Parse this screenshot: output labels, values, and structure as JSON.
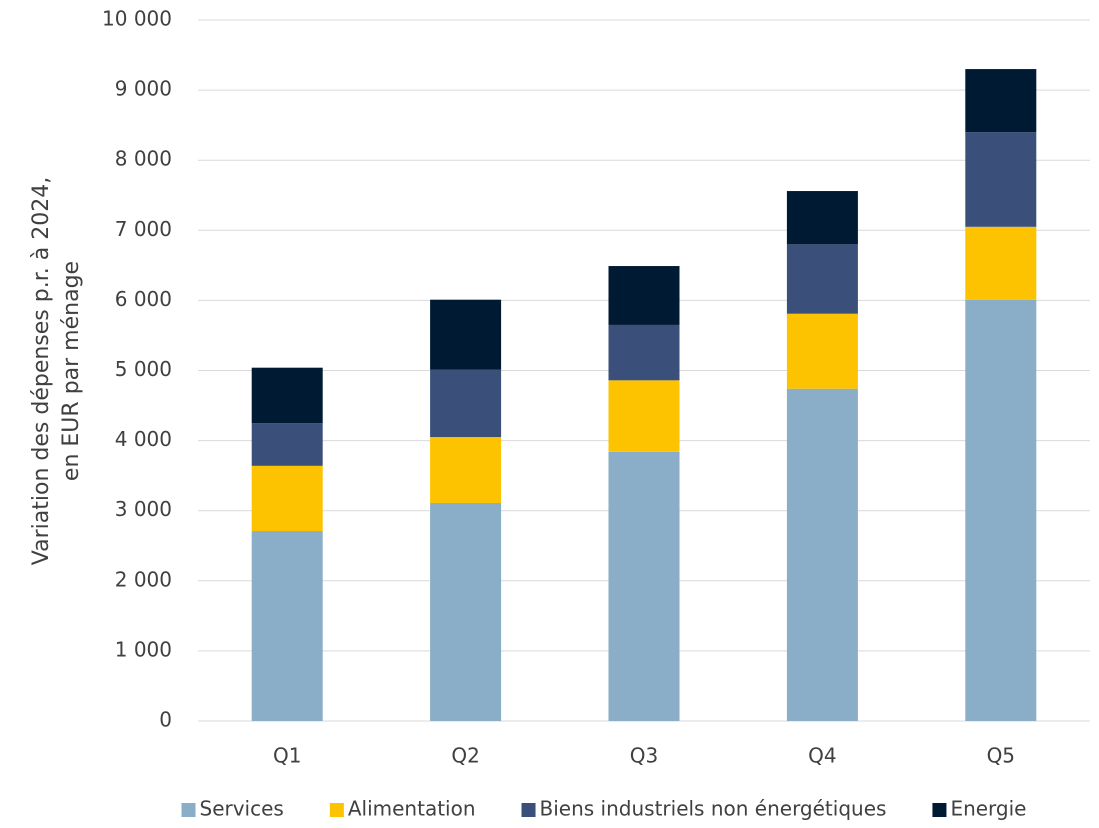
{
  "chart_data": {
    "type": "stacked_bar",
    "y_label": [
      "Variation des dépenses p.r. à 2024,",
      "en EUR par ménage"
    ],
    "categories": [
      "Q1",
      "Q2",
      "Q3",
      "Q4",
      "Q5"
    ],
    "series": [
      {
        "name": "Services",
        "color": "#8aaec8",
        "values": [
          2710,
          3110,
          3840,
          4740,
          6010
        ]
      },
      {
        "name": "Alimentation",
        "color": "#fdc300",
        "values": [
          930,
          940,
          1020,
          1070,
          1040
        ]
      },
      {
        "name": "Biens industriels non énergétiques",
        "color": "#3a4f7a",
        "values": [
          610,
          960,
          790,
          990,
          1350
        ]
      },
      {
        "name": "Energie",
        "color": "#001a33",
        "values": [
          790,
          1000,
          840,
          760,
          900
        ]
      }
    ],
    "ylim": [
      0,
      10000
    ],
    "yticks": [
      0,
      {
        "value": 1000,
        "label": "1 000"
      },
      {
        "value": 2000,
        "label": "2 000"
      },
      {
        "value": 3000,
        "label": "3 000"
      },
      {
        "value": 4000,
        "label": "4 000"
      },
      {
        "value": 5000,
        "label": "5 000"
      },
      {
        "value": 6000,
        "label": "6 000"
      },
      {
        "value": 7000,
        "label": "7 000"
      },
      {
        "value": 8000,
        "label": "8 000"
      },
      {
        "value": 9000,
        "label": "9 000"
      },
      {
        "value": 10000,
        "label": "10 000"
      }
    ],
    "grid": true,
    "legend": "bottom"
  }
}
